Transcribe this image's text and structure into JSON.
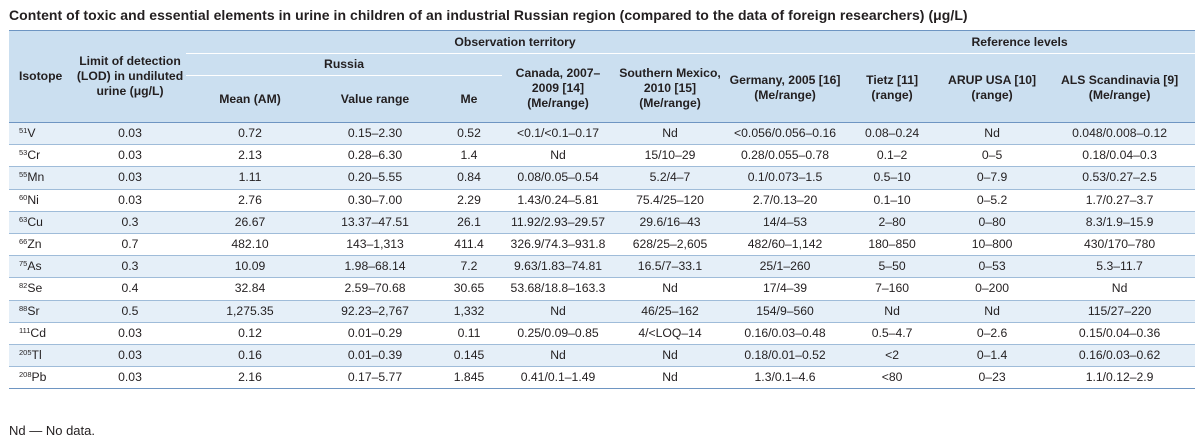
{
  "title": "Content of toxic and essential elements in urine in children of an industrial Russian region (compared to the data of foreign researchers) (μg/L)",
  "header": {
    "isotope": "Isotope",
    "lod": "Limit of detection (LOD) in undiluted urine (μg/L)",
    "observation_territory": "Observation territory",
    "reference_levels": "Reference levels",
    "russia": "Russia",
    "mean": "Mean (AM)",
    "value_range": "Value range",
    "me": "Me",
    "canada": "Canada, 2007–2009 [14] (Me/range)",
    "mexico": "Southern Mexico, 2010 [15] (Me/range)",
    "germany": "Germany, 2005 [16] (Me/range)",
    "tietz": "Tietz [11] (range)",
    "arup": "ARUP USA [10] (range)",
    "als": "ALS Scandinavia [9] (Me/range)"
  },
  "rows": [
    {
      "mass": "51",
      "el": "V",
      "lod": "0.03",
      "mean": "0.72",
      "range": "0.15–2.30",
      "me": "0.52",
      "canada": "<0.1/<0.1–0.17",
      "mexico": "Nd",
      "germany": "<0.056/0.056–0.16",
      "tietz": "0.08–0.24",
      "arup": "Nd",
      "als": "0.048/0.008–0.12"
    },
    {
      "mass": "53",
      "el": "Cr",
      "lod": "0.03",
      "mean": "2.13",
      "range": "0.28–6.30",
      "me": "1.4",
      "canada": "Nd",
      "mexico": "15/10–29",
      "germany": "0.28/0.055–0.78",
      "tietz": "0.1–2",
      "arup": "0–5",
      "als": "0.18/0.04–0.3"
    },
    {
      "mass": "55",
      "el": "Mn",
      "lod": "0.03",
      "mean": "1.11",
      "range": "0.20–5.55",
      "me": "0.84",
      "canada": "0.08/0.05–0.54",
      "mexico": "5.2/4–7",
      "germany": "0.1/0.073–1.5",
      "tietz": "0.5–10",
      "arup": "0–7.9",
      "als": "0.53/0.27–2.5"
    },
    {
      "mass": "60",
      "el": "Ni",
      "lod": "0.03",
      "mean": "2.76",
      "range": "0.30–7.00",
      "me": "2.29",
      "canada": "1.43/0.24–5.81",
      "mexico": "75.4/25–120",
      "germany": "2.7/0.13–20",
      "tietz": "0.1–10",
      "arup": "0–5.2",
      "als": "1.7/0.27–3.7"
    },
    {
      "mass": "63",
      "el": "Cu",
      "lod": "0.3",
      "mean": "26.67",
      "range": "13.37–47.51",
      "me": "26.1",
      "canada": "11.92/2.93–29.57",
      "mexico": "29.6/16–43",
      "germany": "14/4–53",
      "tietz": "2–80",
      "arup": "0–80",
      "als": "8.3/1.9–15.9"
    },
    {
      "mass": "66",
      "el": "Zn",
      "lod": "0.7",
      "mean": "482.10",
      "range": "143–1,313",
      "me": "411.4",
      "canada": "326.9/74.3–931.8",
      "mexico": "628/25–2,605",
      "germany": "482/60–1,142",
      "tietz": "180–850",
      "arup": "10–800",
      "als": "430/170–780"
    },
    {
      "mass": "75",
      "el": "As",
      "lod": "0.3",
      "mean": "10.09",
      "range": "1.98–68.14",
      "me": "7.2",
      "canada": "9.63/1.83–74.81",
      "mexico": "16.5/7–33.1",
      "germany": "25/1–260",
      "tietz": "5–50",
      "arup": "0–53",
      "als": "5.3–11.7"
    },
    {
      "mass": "82",
      "el": "Se",
      "lod": "0.4",
      "mean": "32.84",
      "range": "2.59–70.68",
      "me": "30.65",
      "canada": "53.68/18.8–163.3",
      "mexico": "Nd",
      "germany": "17/4–39",
      "tietz": "7–160",
      "arup": "0–200",
      "als": "Nd"
    },
    {
      "mass": "88",
      "el": "Sr",
      "lod": "0.5",
      "mean": "1,275.35",
      "range": "92.23–2,767",
      "me": "1,332",
      "canada": "Nd",
      "mexico": "46/25–162",
      "germany": "154/9–560",
      "tietz": "Nd",
      "arup": "Nd",
      "als": "115/27–220"
    },
    {
      "mass": "111",
      "el": "Cd",
      "lod": "0.03",
      "mean": "0.12",
      "range": "0.01–0.29",
      "me": "0.11",
      "canada": "0.25/0.09–0.85",
      "mexico": "4/<LOQ–14",
      "germany": "0.16/0.03–0.48",
      "tietz": "0.5–4.7",
      "arup": "0–2.6",
      "als": "0.15/0.04–0.36"
    },
    {
      "mass": "205",
      "el": "Tl",
      "lod": "0.03",
      "mean": "0.16",
      "range": "0.01–0.39",
      "me": "0.145",
      "canada": "Nd",
      "mexico": "Nd",
      "germany": "0.18/0.01–0.52",
      "tietz": "<2",
      "arup": "0–1.4",
      "als": "0.16/0.03–0.62"
    },
    {
      "mass": "208",
      "el": "Pb",
      "lod": "0.03",
      "mean": "2.16",
      "range": "0.17–5.77",
      "me": "1.845",
      "canada": "0.41/0.1–1.49",
      "mexico": "Nd",
      "germany": "1.3/0.1–4.6",
      "tietz": "<80",
      "arup": "0–23",
      "als": "1.1/0.12–2.9"
    }
  ],
  "footnote": "Nd — No data.",
  "colors": {
    "header_bg": "#cbdff0",
    "row_alt_bg": "#e5eff8",
    "rule": "#6e95c2"
  }
}
